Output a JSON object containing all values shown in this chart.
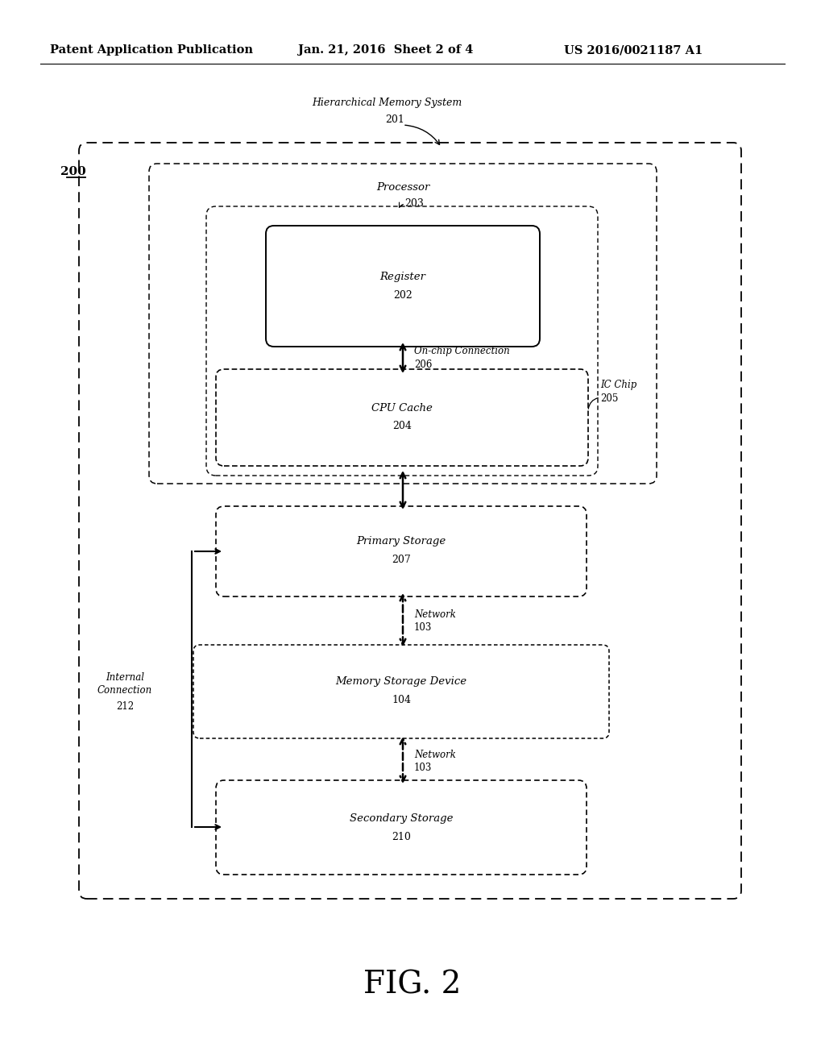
{
  "bg_color": "#ffffff",
  "header_left": "Patent Application Publication",
  "header_mid": "Jan. 21, 2016  Sheet 2 of 4",
  "header_right": "US 2016/0021187 A1",
  "fig_label": "FIG. 2",
  "title_hierarchical": "Hierarchical Memory System",
  "label_201": "201",
  "label_200": "200",
  "proc_label": "Processor",
  "proc_num": "203",
  "reg_label": "Register",
  "reg_num": "202",
  "onchip_label": "On-chip Connection",
  "onchip_num": "206",
  "cache_label": "CPU Cache",
  "cache_num": "204",
  "ic_chip_label": "IC Chip",
  "ic_chip_num": "205",
  "ps_label": "Primary Storage",
  "ps_num": "207",
  "net_label": "Network",
  "net_num": "103",
  "msd_label": "Memory Storage Device",
  "msd_num": "104",
  "ss_label": "Secondary Storage",
  "ss_num": "210",
  "ic_label1": "Internal",
  "ic_label2": "Connection",
  "ic_num": "212"
}
